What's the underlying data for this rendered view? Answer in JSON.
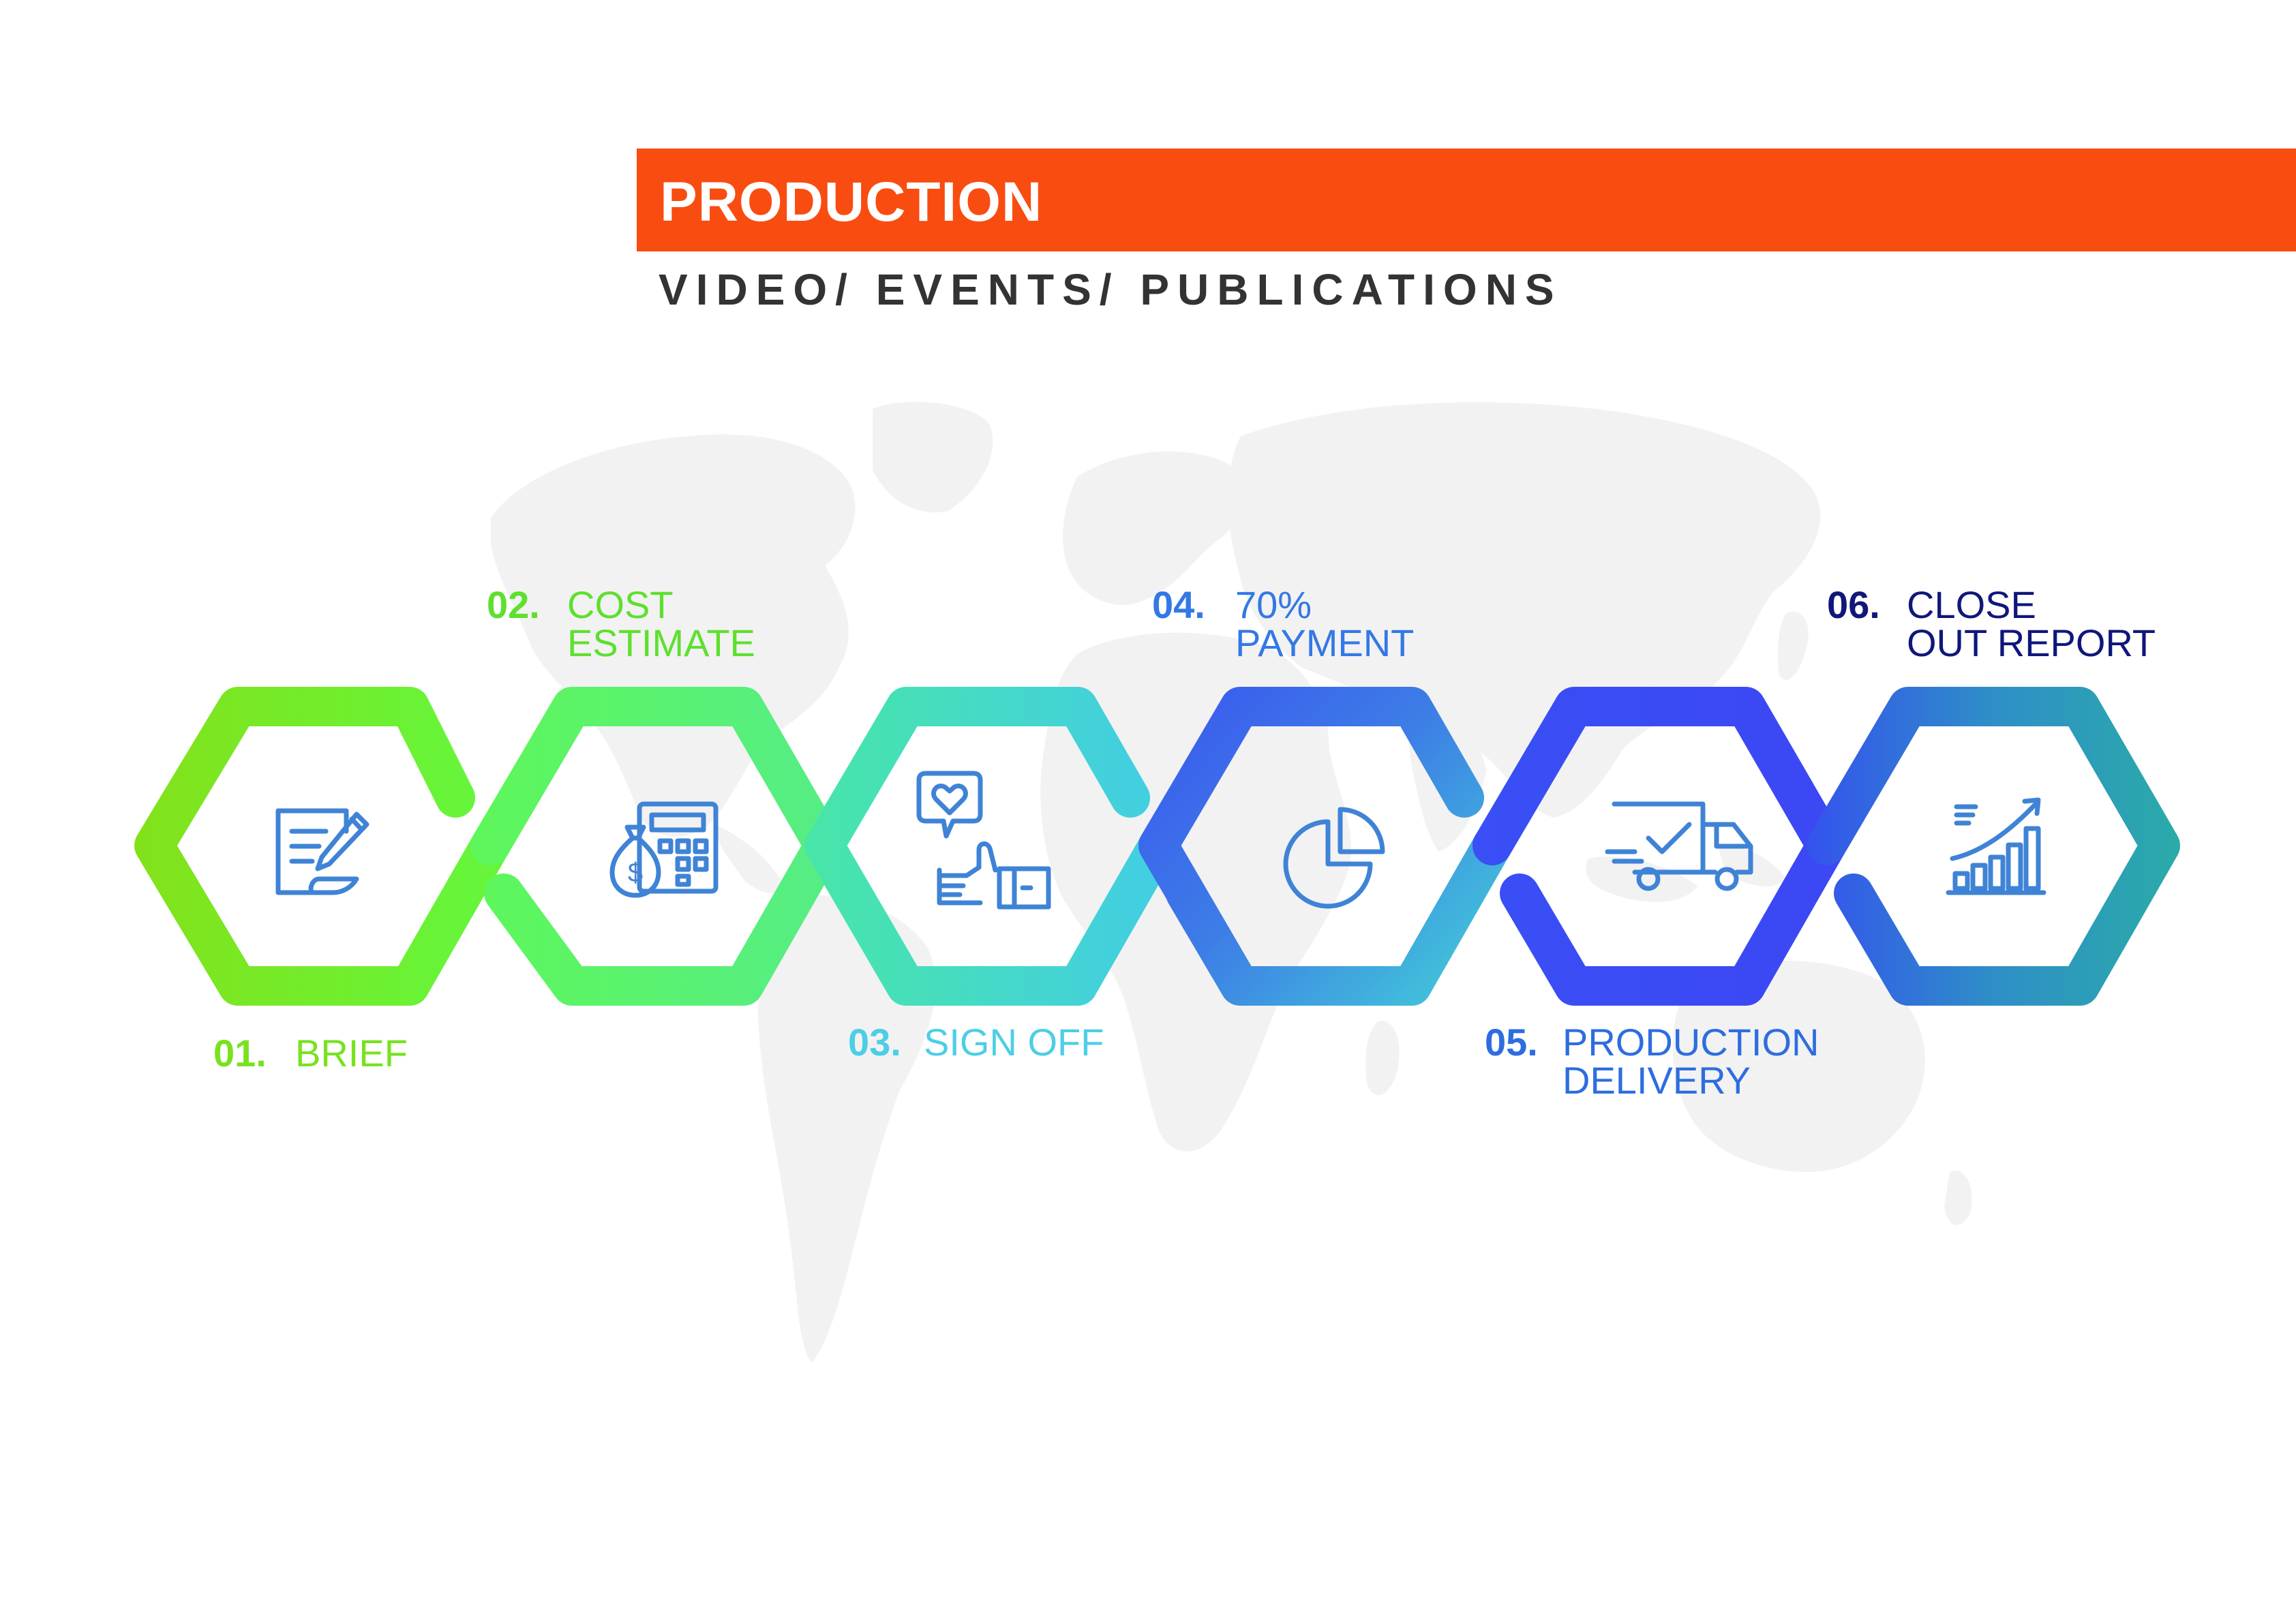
{
  "header": {
    "title": "PRODUCTION",
    "subtitle": "VIDEO/ EVENTS/ PUBLICATIONS",
    "banner_color": "#f94c10"
  },
  "steps": [
    {
      "number": "01.",
      "lines": [
        "BRIEF"
      ],
      "color": "#78e21f",
      "icon": "document-pen-icon"
    },
    {
      "number": "02.",
      "lines": [
        "COST",
        "ESTIMATE"
      ],
      "color": "#5de02e",
      "icon": "calculator-money-icon"
    },
    {
      "number": "03.",
      "lines": [
        "SIGN OFF"
      ],
      "color": "#4ccee6",
      "icon": "thumbs-up-heart-icon"
    },
    {
      "number": "04.",
      "lines": [
        "70%",
        "PAYMENT"
      ],
      "color": "#3478e6",
      "icon": "pie-chart-icon"
    },
    {
      "number": "05.",
      "lines": [
        "PRODUCTION",
        "DELIVERY"
      ],
      "color": "#2e6de0",
      "icon": "delivery-truck-icon"
    },
    {
      "number": "06.",
      "lines": [
        "CLOSE",
        "OUT REPORT"
      ],
      "color": "#0f177a",
      "icon": "growth-chart-icon"
    }
  ],
  "colors": {
    "icon_stroke": "#3f83d6",
    "map": "#f2f2f2",
    "hex1": "#77f02a",
    "hex2": "#55f26e",
    "hex3": "#42d7d6",
    "hex4": "#3f45f5",
    "hex5": "#3a47f3",
    "hex6": "#2aa8b4"
  }
}
